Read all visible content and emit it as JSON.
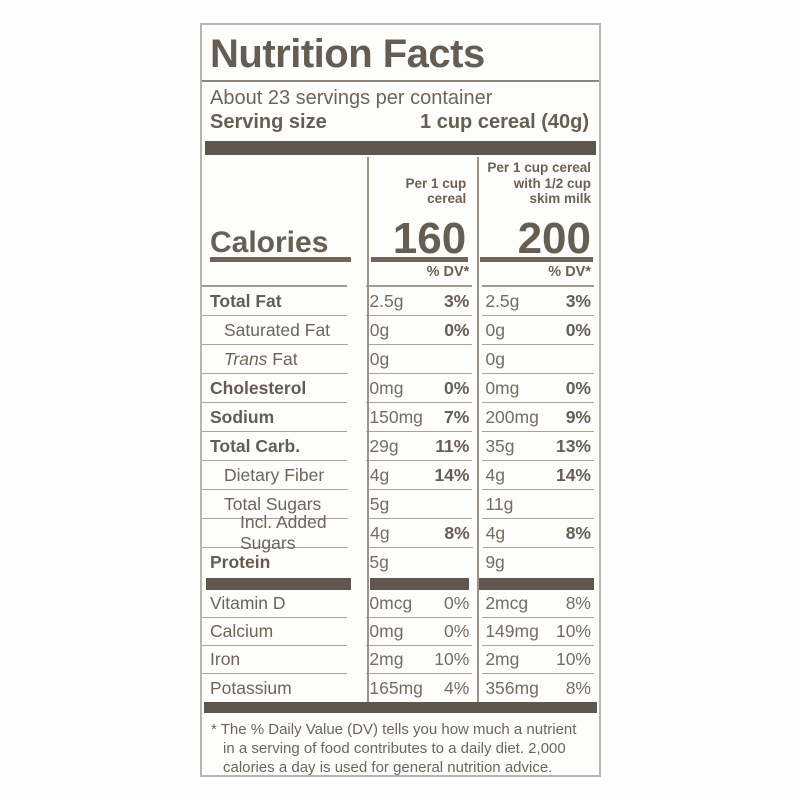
{
  "label": {
    "title": "Nutrition Facts",
    "servings_per_container": "About 23 servings per container",
    "serving_size_label": "Serving size",
    "serving_size_value": "1 cup cereal (40g)",
    "columns": {
      "col1_header": "Per 1 cup cereal",
      "col2_header_line1": "Per 1 cup cereal",
      "col2_header_line2": "with 1/2 cup skim milk"
    },
    "calories": {
      "label": "Calories",
      "col1": "160",
      "col2": "200"
    },
    "dv_header": "% DV*",
    "nutrient_rows": [
      {
        "name": "Total Fat",
        "bold": true,
        "indent": 0,
        "amt1": "2.5g",
        "dv1": "3%",
        "amt2": "2.5g",
        "dv2": "3%"
      },
      {
        "name": "Saturated Fat",
        "bold": false,
        "indent": 1,
        "amt1": "0g",
        "dv1": "0%",
        "amt2": "0g",
        "dv2": "0%"
      },
      {
        "name": "Fat",
        "name_italic": "Trans",
        "bold": false,
        "indent": 1,
        "amt1": "0g",
        "dv1": "",
        "amt2": "0g",
        "dv2": ""
      },
      {
        "name": "Cholesterol",
        "bold": true,
        "indent": 0,
        "amt1": "0mg",
        "dv1": "0%",
        "amt2": "0mg",
        "dv2": "0%"
      },
      {
        "name": "Sodium",
        "bold": true,
        "indent": 0,
        "amt1": "150mg",
        "dv1": "7%",
        "amt2": "200mg",
        "dv2": "9%"
      },
      {
        "name": "Total Carb.",
        "bold": true,
        "indent": 0,
        "amt1": "29g",
        "dv1": "11%",
        "amt2": "35g",
        "dv2": "13%"
      },
      {
        "name": "Dietary Fiber",
        "bold": false,
        "indent": 1,
        "amt1": "4g",
        "dv1": "14%",
        "amt2": "4g",
        "dv2": "14%"
      },
      {
        "name": "Total Sugars",
        "bold": false,
        "indent": 1,
        "amt1": "5g",
        "dv1": "",
        "amt2": "11g",
        "dv2": ""
      },
      {
        "name": "Incl. Added Sugars",
        "bold": false,
        "indent": 2,
        "amt1": "4g",
        "dv1": "8%",
        "amt2": "4g",
        "dv2": "8%"
      },
      {
        "name": "Protein",
        "bold": true,
        "indent": 0,
        "amt1": "5g",
        "dv1": "",
        "amt2": "9g",
        "dv2": ""
      }
    ],
    "vitamin_rows": [
      {
        "name": "Vitamin D",
        "bold": false,
        "indent": 0,
        "amt1": "0mcg",
        "dv1": "0%",
        "amt2": "2mcg",
        "dv2": "8%"
      },
      {
        "name": "Calcium",
        "bold": false,
        "indent": 0,
        "amt1": "0mg",
        "dv1": "0%",
        "amt2": "149mg",
        "dv2": "10%"
      },
      {
        "name": "Iron",
        "bold": false,
        "indent": 0,
        "amt1": "2mg",
        "dv1": "10%",
        "amt2": "2mg",
        "dv2": "10%"
      },
      {
        "name": "Potassium",
        "bold": false,
        "indent": 0,
        "amt1": "165mg",
        "dv1": "4%",
        "amt2": "356mg",
        "dv2": "8%"
      }
    ],
    "footnote": "* The % Daily Value (DV) tells you how much a nutrient in a serving of food contributes to a daily diet. 2,000 calories a day is used for general nutrition advice.",
    "colors": {
      "text": "#6b6257",
      "bars": "#5f574d",
      "lines": "#a59d93",
      "label_bg": "#fdfdfb"
    }
  }
}
